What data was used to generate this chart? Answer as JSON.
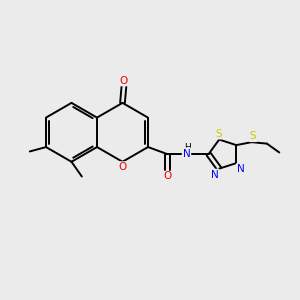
{
  "bg_color": "#ebebeb",
  "atom_colors": {
    "C": "#000000",
    "N": "#0000ee",
    "O": "#ee0000",
    "S": "#cccc00"
  },
  "figsize": [
    3.0,
    3.0
  ],
  "dpi": 100
}
